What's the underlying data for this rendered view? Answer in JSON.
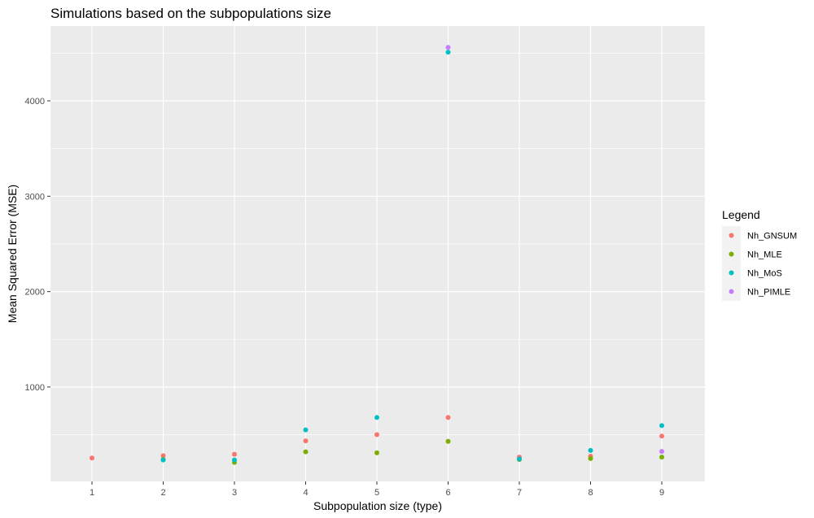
{
  "chart_data": {
    "type": "scatter",
    "title": "Simulations based on the subpopulations size",
    "xlabel": "Subpopulation size (type)",
    "ylabel": "Mean Squared Error (MSE)",
    "x_categories": [
      "1",
      "2",
      "3",
      "4",
      "5",
      "6",
      "7",
      "8",
      "9"
    ],
    "y_ticks": [
      "1000",
      "2000",
      "3000",
      "4000"
    ],
    "ylim": [
      0,
      4700
    ],
    "grid": true,
    "legend": {
      "title": "Legend",
      "placement": "right"
    },
    "series": [
      {
        "name": "Nh_GNSUM",
        "color": "#F8766D",
        "points": [
          {
            "x": "1",
            "y": 255
          },
          {
            "x": "2",
            "y": 280
          },
          {
            "x": "3",
            "y": 295
          },
          {
            "x": "4",
            "y": 435
          },
          {
            "x": "5",
            "y": 500
          },
          {
            "x": "6",
            "y": 680
          },
          {
            "x": "7",
            "y": 265
          },
          {
            "x": "8",
            "y": 275
          },
          {
            "x": "9",
            "y": 485
          }
        ]
      },
      {
        "name": "Nh_MLE",
        "color": "#7CAE00",
        "points": [
          {
            "x": "2",
            "y": 240
          },
          {
            "x": "3",
            "y": 210
          },
          {
            "x": "4",
            "y": 320
          },
          {
            "x": "5",
            "y": 310
          },
          {
            "x": "6",
            "y": 430
          },
          {
            "x": "7",
            "y": 240
          },
          {
            "x": "8",
            "y": 250
          },
          {
            "x": "9",
            "y": 265
          }
        ]
      },
      {
        "name": "Nh_MoS",
        "color": "#00BFC4",
        "points": [
          {
            "x": "2",
            "y": 235
          },
          {
            "x": "3",
            "y": 235
          },
          {
            "x": "4",
            "y": 550
          },
          {
            "x": "5",
            "y": 680
          },
          {
            "x": "6",
            "y": 4510
          },
          {
            "x": "7",
            "y": 245
          },
          {
            "x": "8",
            "y": 335
          },
          {
            "x": "9",
            "y": 595
          }
        ]
      },
      {
        "name": "Nh_PIMLE",
        "color": "#C77CFF",
        "points": [
          {
            "x": "6",
            "y": 4560
          },
          {
            "x": "9",
            "y": 325
          }
        ]
      }
    ]
  }
}
